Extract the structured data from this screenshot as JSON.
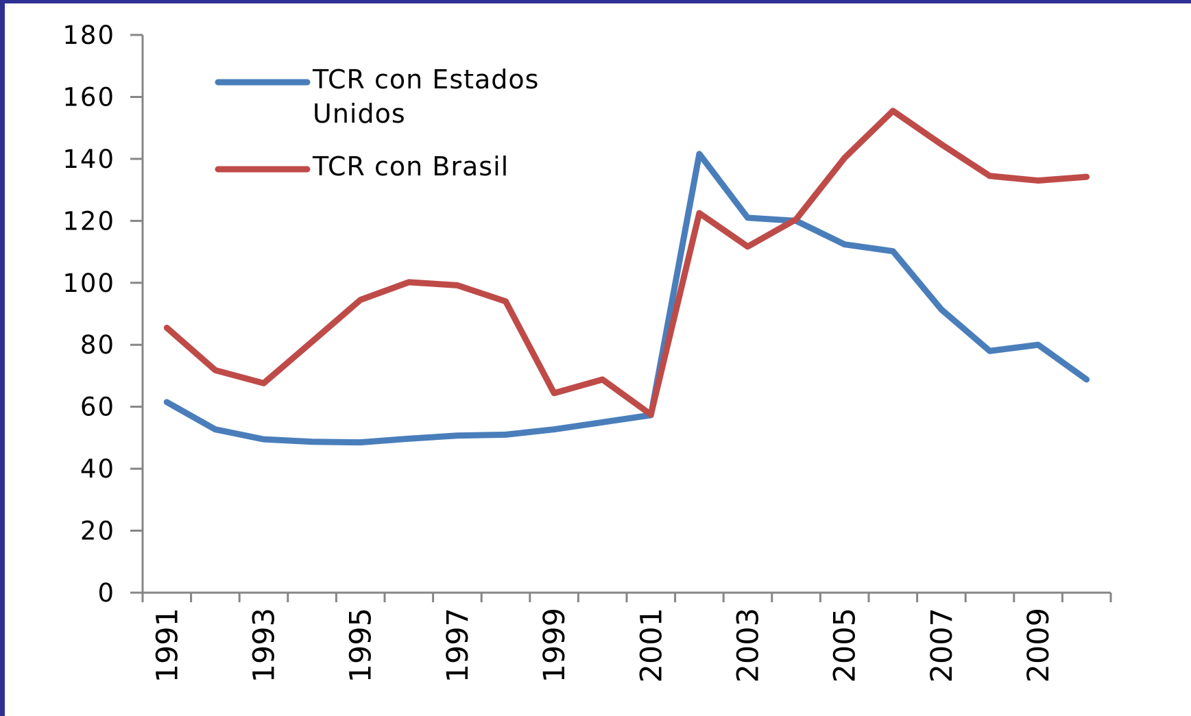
{
  "chart_data": {
    "type": "line",
    "categories": [
      "1991",
      null,
      "1993",
      null,
      "1995",
      null,
      "1997",
      null,
      "1999",
      null,
      "2001",
      null,
      "2003",
      null,
      "2005",
      null,
      "2007",
      null,
      "2009",
      null
    ],
    "series": [
      {
        "name": "TCR con Estados Unidos",
        "color": "#4a7ebb",
        "values": [
          61.5,
          52.7,
          49.5,
          48.7,
          48.5,
          49.7,
          50.7,
          51,
          52.7,
          55,
          57.3,
          141.6,
          121,
          120,
          112.4,
          110.2,
          91.4,
          78,
          80,
          68.8
        ]
      },
      {
        "name": "TCR con Brasil",
        "color": "#be4b48",
        "values": [
          85.5,
          71.8,
          67.6,
          81,
          94.5,
          100.2,
          99.2,
          94,
          64.4,
          68.8,
          57.5,
          122.5,
          111.7,
          120.5,
          140.3,
          155.5,
          144.7,
          134.5,
          133,
          134.2
        ]
      }
    ],
    "ylim": [
      0,
      180
    ],
    "yticks": [
      0,
      20,
      40,
      60,
      80,
      100,
      120,
      140,
      160,
      180
    ],
    "grid": false,
    "legend": "upper left"
  }
}
